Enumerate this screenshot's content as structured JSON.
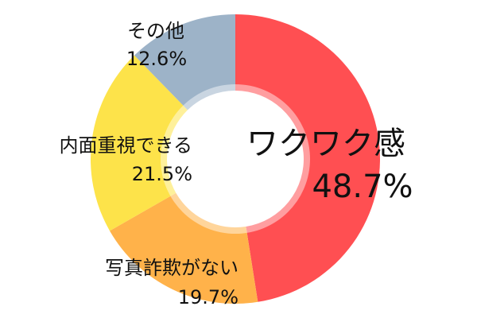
{
  "chart_data": {
    "type": "donut",
    "categories": [
      "ワクワク感",
      "写真詐欺がない",
      "内面重視できる",
      "その他"
    ],
    "values": [
      48.7,
      19.7,
      21.5,
      12.6
    ],
    "value_labels": [
      "48.7%",
      "19.7%",
      "21.5%",
      "12.6%"
    ],
    "colors": [
      "#ff4f52",
      "#ffb24a",
      "#fde34a",
      "#9db3c8"
    ]
  }
}
